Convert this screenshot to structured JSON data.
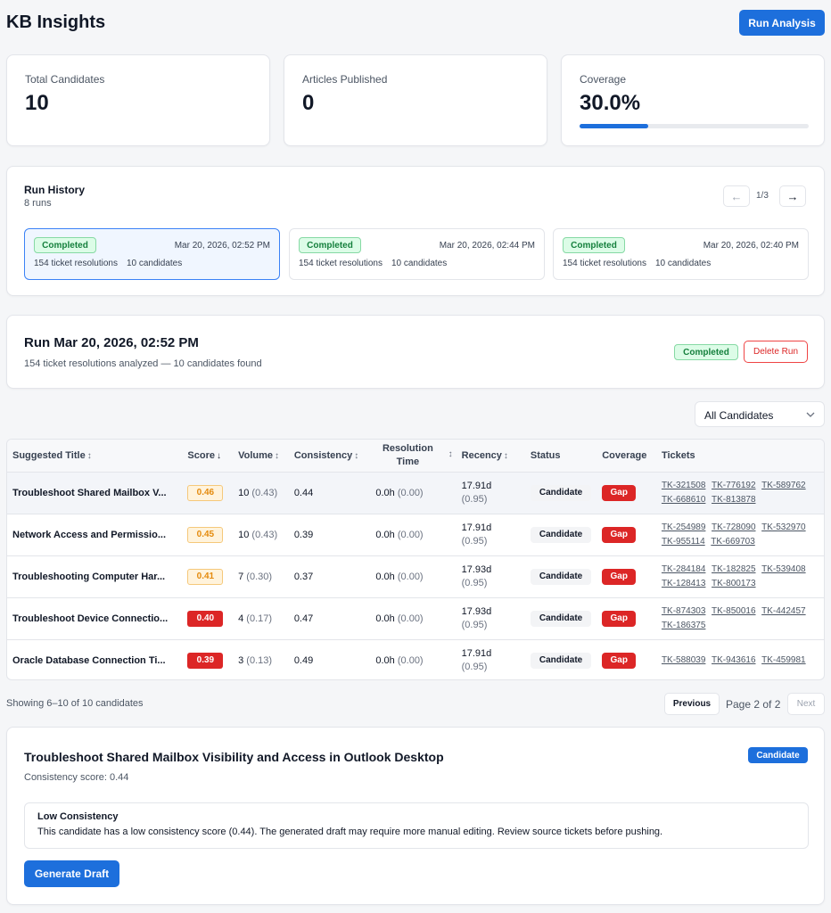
{
  "header": {
    "title": "KB Insights",
    "run_button": "Run Analysis"
  },
  "stats": [
    {
      "label": "Total Candidates",
      "value": "10"
    },
    {
      "label": "Articles Published",
      "value": "0"
    },
    {
      "label": "Coverage",
      "value": "30.0%",
      "progress": 0.3
    }
  ],
  "history": {
    "title": "Run History",
    "subtitle": "8 runs",
    "page": "1/3",
    "prev_icon": "←",
    "next_icon": "→",
    "runs": [
      {
        "status": "Completed",
        "date": "Mar 20, 2026, 02:52 PM",
        "resolutions": "154 ticket resolutions",
        "candidates": "10 candidates"
      },
      {
        "status": "Completed",
        "date": "Mar 20, 2026, 02:44 PM",
        "resolutions": "154 ticket resolutions",
        "candidates": "10 candidates"
      },
      {
        "status": "Completed",
        "date": "Mar 20, 2026, 02:40 PM",
        "resolutions": "154 ticket resolutions",
        "candidates": "10 candidates"
      }
    ]
  },
  "run_detail": {
    "title": "Run Mar 20, 2026, 02:52 PM",
    "subtitle": "154 ticket resolutions analyzed — 10 candidates found",
    "status": "Completed",
    "delete_label": "Delete Run"
  },
  "filter": {
    "selected": "All Candidates"
  },
  "table": {
    "headers": {
      "title": "Suggested Title",
      "score": "Score",
      "volume": "Volume",
      "consistency": "Consistency",
      "resolution_1": "Resolution",
      "resolution_2": "Time",
      "recency": "Recency",
      "status": "Status",
      "coverage": "Coverage",
      "tickets": "Tickets"
    },
    "rows": [
      {
        "title": "Troubleshoot Shared Mailbox V...",
        "score": "0.46",
        "score_color": "orange",
        "volume": "10",
        "volume_sub": "(0.43)",
        "consistency": "0.44",
        "resolution": "0.0h",
        "resolution_sub": "(0.00)",
        "recency": "17.91d",
        "recency_sub": "(0.95)",
        "status": "Candidate",
        "coverage": "Gap",
        "tickets": [
          "TK-321508",
          "TK-776192",
          "TK-589762",
          "TK-668610",
          "TK-813878"
        ]
      },
      {
        "title": "Network Access and Permissio...",
        "score": "0.45",
        "score_color": "orange",
        "volume": "10",
        "volume_sub": "(0.43)",
        "consistency": "0.39",
        "resolution": "0.0h",
        "resolution_sub": "(0.00)",
        "recency": "17.91d",
        "recency_sub": "(0.95)",
        "status": "Candidate",
        "coverage": "Gap",
        "tickets": [
          "TK-254989",
          "TK-728090",
          "TK-532970",
          "TK-955114",
          "TK-669703"
        ]
      },
      {
        "title": "Troubleshooting Computer Har...",
        "score": "0.41",
        "score_color": "orange",
        "volume": "7",
        "volume_sub": "(0.30)",
        "consistency": "0.37",
        "resolution": "0.0h",
        "resolution_sub": "(0.00)",
        "recency": "17.93d",
        "recency_sub": "(0.95)",
        "status": "Candidate",
        "coverage": "Gap",
        "tickets": [
          "TK-284184",
          "TK-182825",
          "TK-539408",
          "TK-128413",
          "TK-800173"
        ]
      },
      {
        "title": "Troubleshoot Device Connectio...",
        "score": "0.40",
        "score_color": "red",
        "volume": "4",
        "volume_sub": "(0.17)",
        "consistency": "0.47",
        "resolution": "0.0h",
        "resolution_sub": "(0.00)",
        "recency": "17.93d",
        "recency_sub": "(0.95)",
        "status": "Candidate",
        "coverage": "Gap",
        "tickets": [
          "TK-874303",
          "TK-850016",
          "TK-442457",
          "TK-186375"
        ]
      },
      {
        "title": "Oracle Database Connection Ti...",
        "score": "0.39",
        "score_color": "red",
        "volume": "3",
        "volume_sub": "(0.13)",
        "consistency": "0.49",
        "resolution": "0.0h",
        "resolution_sub": "(0.00)",
        "recency": "17.91d",
        "recency_sub": "(0.95)",
        "status": "Candidate",
        "coverage": "Gap",
        "tickets": [
          "TK-588039",
          "TK-943616",
          "TK-459981"
        ]
      }
    ]
  },
  "pagination": {
    "showing": "Showing 6–10 of 10 candidates",
    "prev": "Previous",
    "page": "Page 2 of 2",
    "next": "Next"
  },
  "detail": {
    "title": "Troubleshoot Shared Mailbox Visibility and Access in Outlook Desktop",
    "badge": "Candidate",
    "consistency": "Consistency score: 0.44",
    "alert_title": "Low Consistency",
    "alert_body": "This candidate has a low consistency score (0.44). The generated draft may require more manual editing. Review source tickets before pushing.",
    "button": "Generate Draft"
  }
}
